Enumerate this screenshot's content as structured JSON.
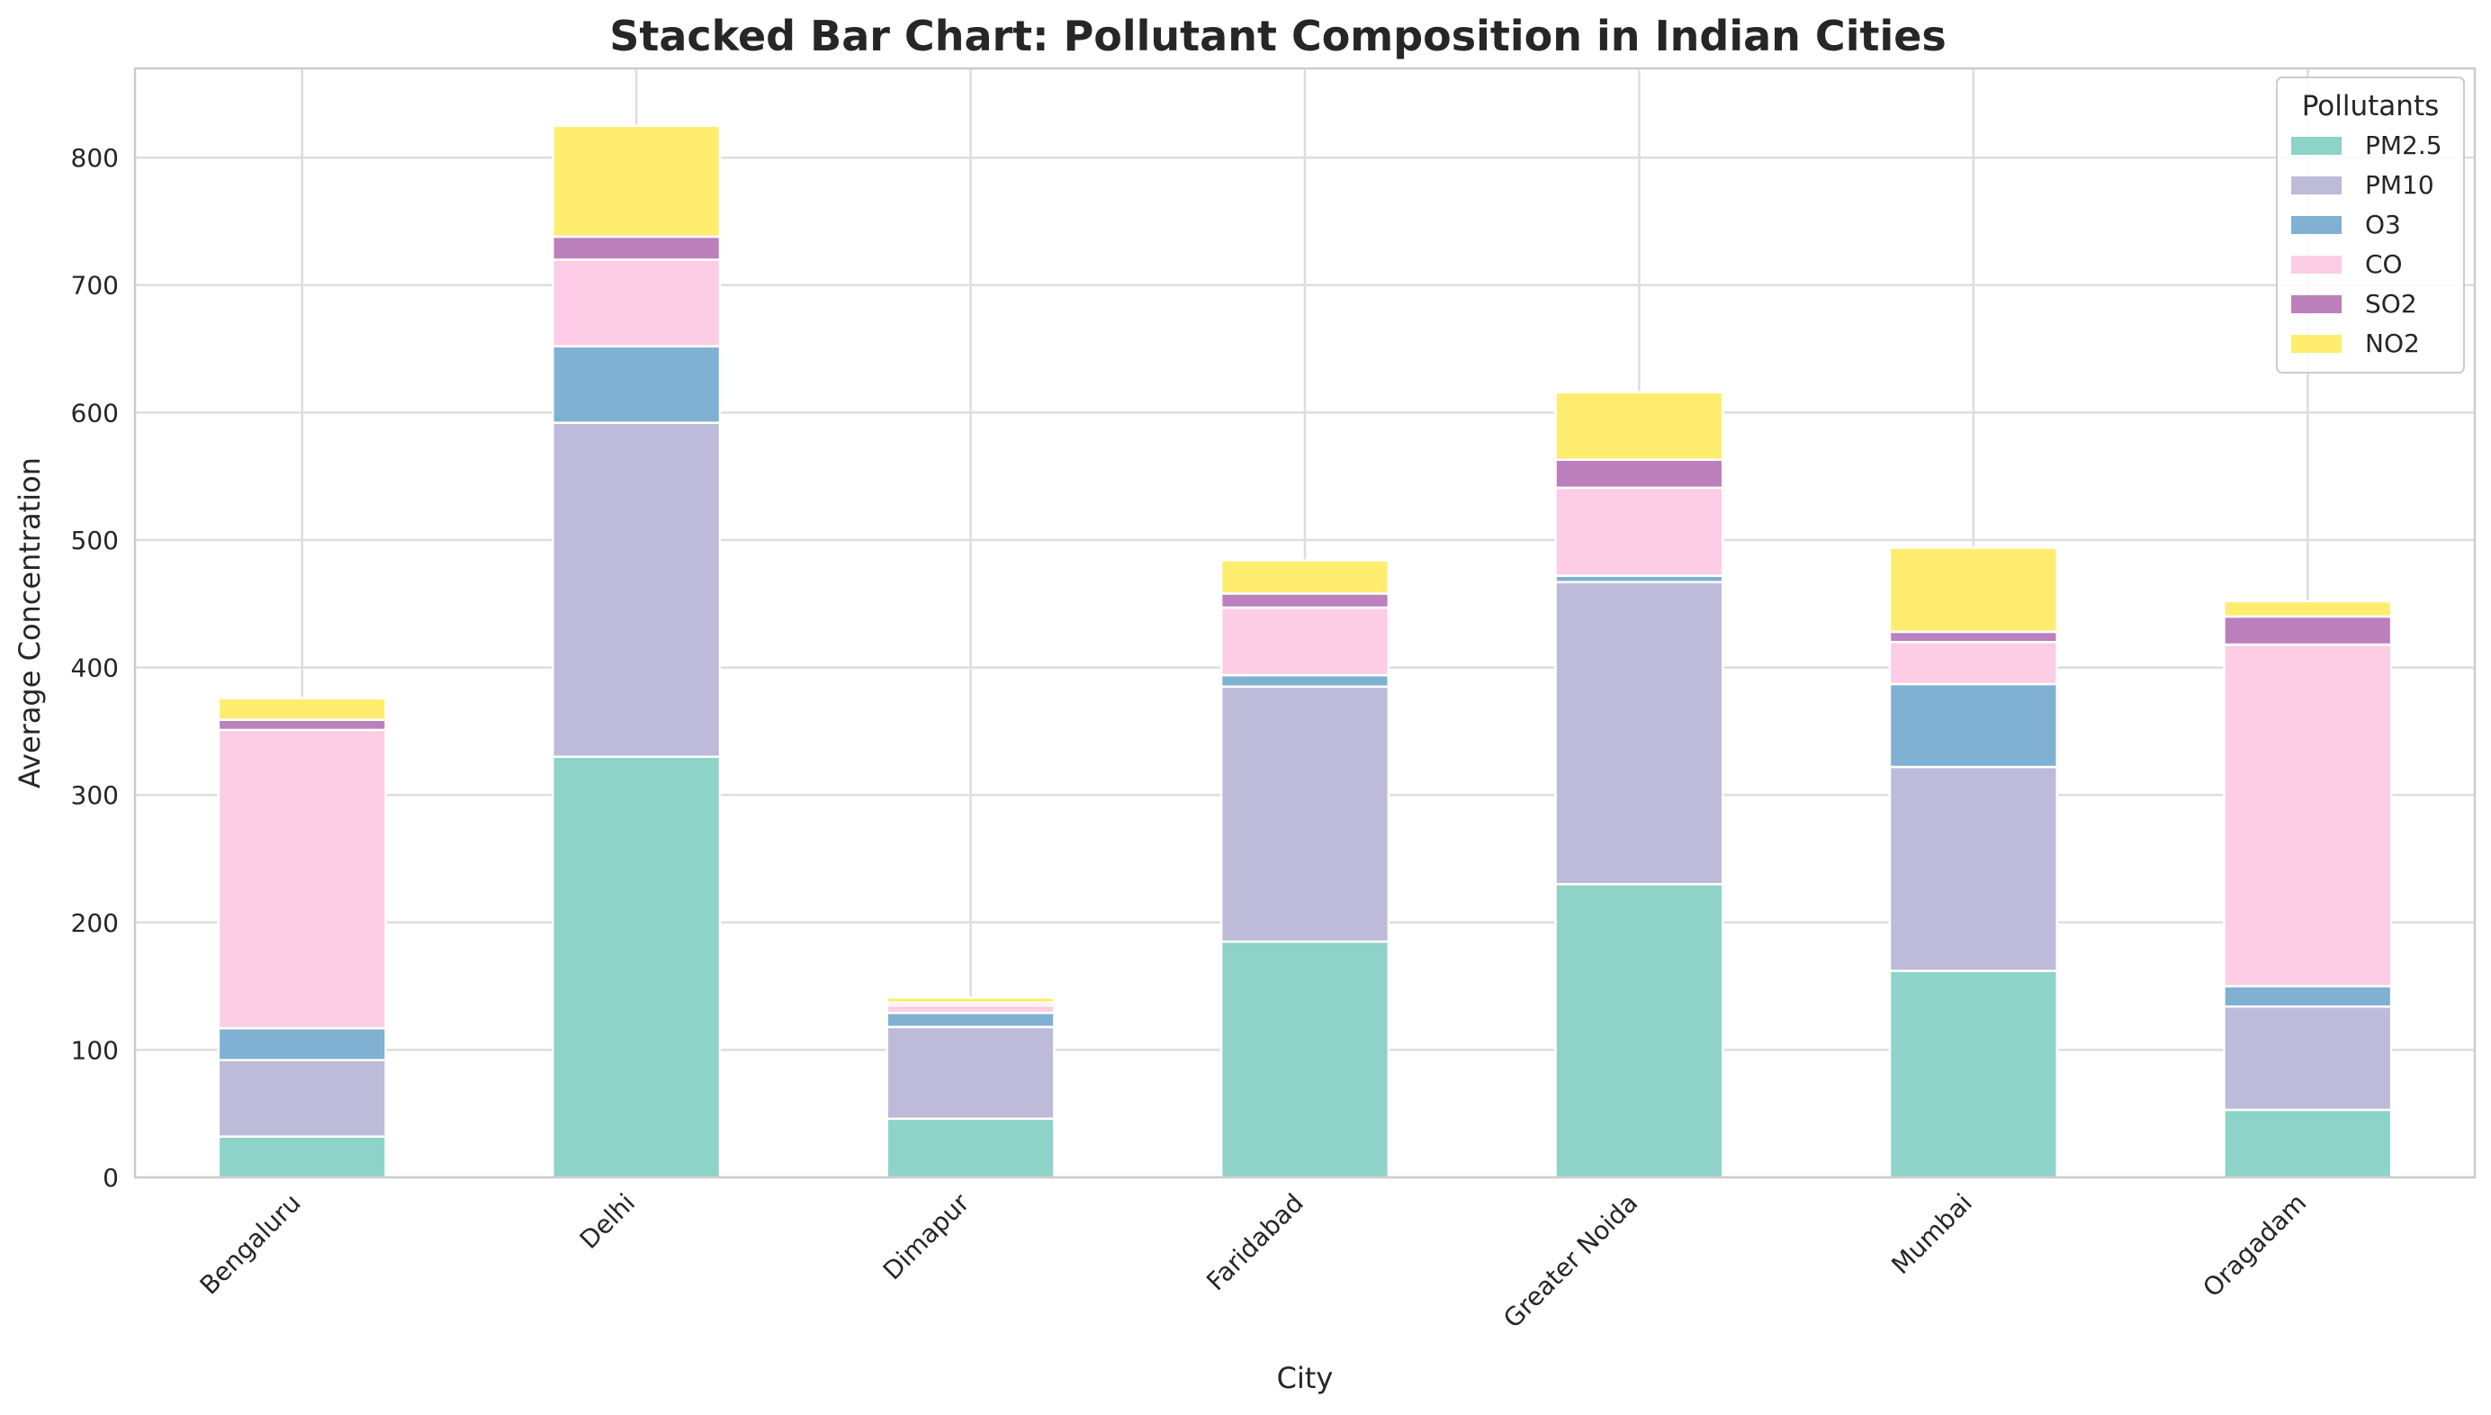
{
  "chart_data": {
    "type": "bar",
    "stacked": true,
    "title": "Stacked Bar Chart: Pollutant Composition in Indian Cities",
    "xlabel": "City",
    "ylabel": "Average Concentration",
    "ylim": [
      0,
      870
    ],
    "yticks": [
      "0",
      "100",
      "200",
      "300",
      "400",
      "500",
      "600",
      "700",
      "800"
    ],
    "grid": true,
    "categories": [
      "Bengaluru",
      "Delhi",
      "Dimapur",
      "Faridabad",
      "Greater Noida",
      "Mumbai",
      "Oragadam"
    ],
    "legend": {
      "title": "Pollutants",
      "position": "top-right"
    },
    "series": [
      {
        "name": "PM2.5",
        "color": "#8dd3c7",
        "values": [
          32,
          330,
          46,
          185,
          230,
          162,
          53
        ]
      },
      {
        "name": "PM10",
        "color": "#bebada",
        "values": [
          60,
          262,
          72,
          200,
          237,
          160,
          81
        ]
      },
      {
        "name": "O3",
        "color": "#80b1d3",
        "values": [
          25,
          60,
          11,
          9,
          5,
          65,
          16
        ]
      },
      {
        "name": "CO",
        "color": "#fccde5",
        "values": [
          234,
          68,
          6,
          53,
          69,
          33,
          268
        ]
      },
      {
        "name": "SO2",
        "color": "#bc80bd",
        "values": [
          8,
          18,
          2,
          11,
          22,
          8,
          22
        ]
      },
      {
        "name": "NO2",
        "color": "#ffed6f",
        "values": [
          17,
          87,
          4,
          26,
          53,
          66,
          12
        ]
      }
    ]
  }
}
